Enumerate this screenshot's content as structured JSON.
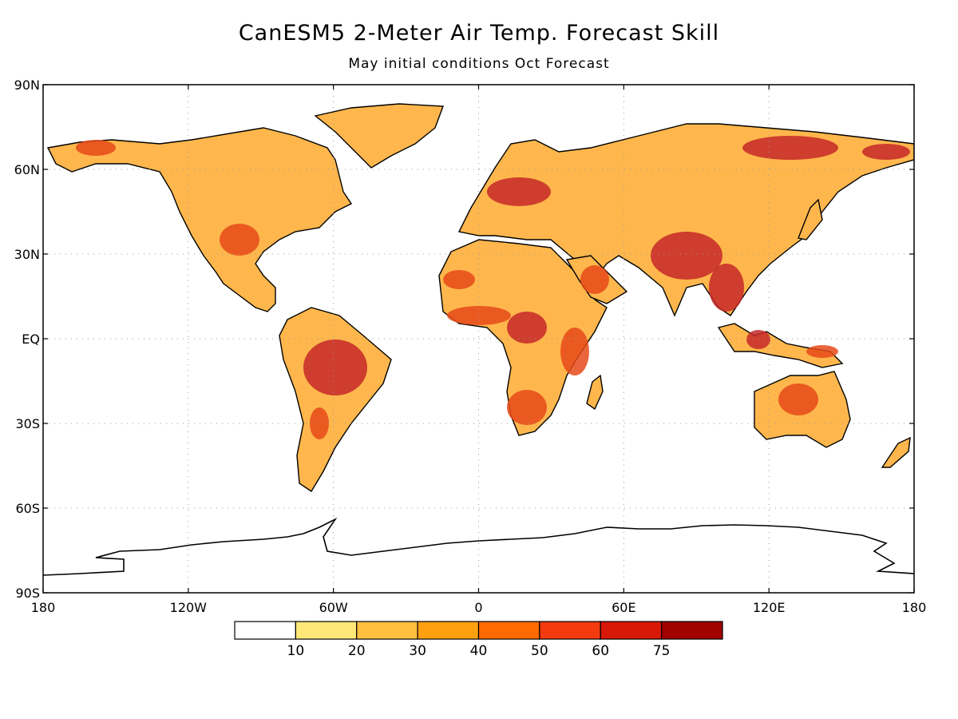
{
  "title": "CanESM5 2-Meter Air Temp. Forecast Skill",
  "subtitle": "May initial conditions   Oct Forecast",
  "lat_labels": [
    "90N",
    "60N",
    "30N",
    "EQ",
    "30S",
    "60S",
    "90S"
  ],
  "lon_labels": [
    "180",
    "120W",
    "60W",
    "0",
    "60E",
    "120E",
    "180"
  ],
  "colorbar": {
    "colors": [
      "#ffffff",
      "#ffe878",
      "#ffc040",
      "#ffa010",
      "#ff6a00",
      "#f53a10",
      "#d81808",
      "#a00000"
    ],
    "labels": [
      "10",
      "20",
      "30",
      "40",
      "50",
      "60",
      "75"
    ]
  },
  "regions": {
    "land_color": "#ffb74d",
    "high_skill_color": "#e64a19",
    "very_high_skill_color": "#c62828",
    "coast_color": "#000000"
  }
}
